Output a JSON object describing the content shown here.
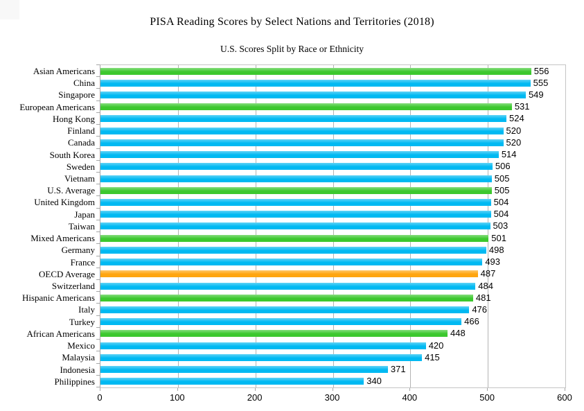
{
  "page": {
    "background": "#ffffff"
  },
  "chart_data": {
    "type": "bar",
    "orientation": "horizontal",
    "title": "PISA Reading Scores by Select Nations and Territories (2018)",
    "subtitle": "U.S. Scores Split by Race or Ethnicity",
    "categories": [
      "Asian Americans",
      "China",
      "Singapore",
      "European Americans",
      "Hong Kong",
      "Finland",
      "Canada",
      "South Korea",
      "Sweden",
      "Vietnam",
      "U.S. Average",
      "United Kingdom",
      "Japan",
      "Taiwan",
      "Mixed Americans",
      "Germany",
      "France",
      "OECD Average",
      "Switzerland",
      "Hispanic Americans",
      "Italy",
      "Turkey",
      "African Americans",
      "Mexico",
      "Malaysia",
      "Indonesia",
      "Philippines"
    ],
    "values": [
      556,
      555,
      549,
      531,
      524,
      520,
      520,
      514,
      506,
      505,
      505,
      504,
      504,
      503,
      501,
      498,
      493,
      487,
      484,
      481,
      476,
      466,
      448,
      420,
      415,
      371,
      340
    ],
    "bar_color_keys": [
      "green",
      "blue",
      "blue",
      "green",
      "blue",
      "blue",
      "blue",
      "blue",
      "blue",
      "blue",
      "green",
      "blue",
      "blue",
      "blue",
      "green",
      "blue",
      "blue",
      "orange",
      "blue",
      "green",
      "blue",
      "blue",
      "green",
      "blue",
      "blue",
      "blue",
      "blue"
    ],
    "colors": {
      "green": "#3cc82e",
      "blue": "#00b9f2",
      "orange": "#ffa50f"
    },
    "xlim": [
      0,
      600
    ],
    "x_ticks": [
      0,
      100,
      200,
      300,
      400,
      500,
      600
    ],
    "grid": "vertical",
    "legend": "none",
    "value_labels": "end-of-bar"
  }
}
